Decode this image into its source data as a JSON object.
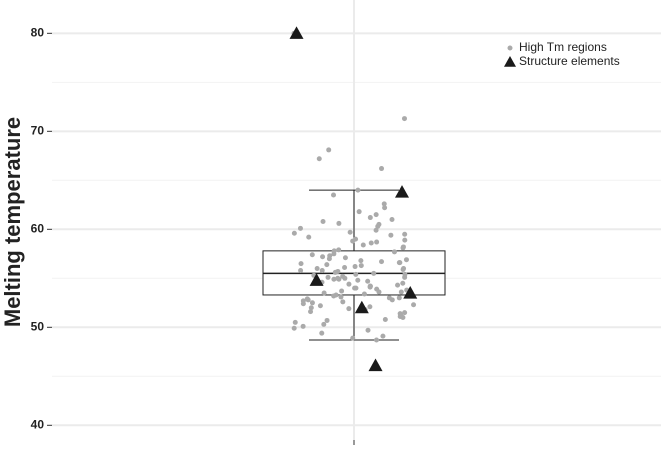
{
  "chart_data": {
    "type": "box",
    "y_label": "Melting temperature",
    "ylim": [
      38.5,
      83.4
    ],
    "yticks": [
      40,
      50,
      60,
      70,
      80
    ],
    "grid": true,
    "legend": "top-right",
    "box": {
      "whisker_low": 48.7,
      "q1": 53.3,
      "median": 55.5,
      "q3": 57.8,
      "whisker_high": 64.0
    },
    "series": [
      {
        "name": "High Tm regions",
        "color": "#aaaaaa",
        "marker": "circle",
        "values": [
          80.0,
          71.3,
          68.1,
          67.2,
          66.2,
          64.0,
          63.5,
          62.6,
          62.2,
          61.8,
          61.5,
          61.2,
          61.0,
          60.8,
          60.6,
          60.5,
          60.3,
          60.1,
          59.9,
          59.7,
          59.5,
          59.4,
          59.2,
          59.0,
          58.9,
          58.7,
          58.6,
          58.4,
          58.2,
          58.1,
          57.9,
          57.8,
          57.7,
          57.5,
          57.4,
          57.3,
          57.1,
          57.0,
          56.9,
          56.8,
          56.7,
          56.6,
          56.5,
          56.4,
          56.3,
          56.2,
          56.1,
          56.0,
          55.9,
          55.8,
          55.7,
          55.6,
          55.5,
          55.4,
          55.4,
          55.3,
          55.2,
          55.1,
          55.0,
          55.0,
          54.9,
          54.8,
          54.7,
          54.6,
          54.5,
          54.4,
          54.3,
          54.2,
          54.1,
          54.0,
          54.0,
          53.9,
          53.8,
          53.7,
          53.6,
          53.5,
          53.4,
          53.3,
          53.2,
          53.1,
          53.0,
          53.0,
          52.9,
          52.8,
          52.7,
          52.6,
          52.5,
          52.4,
          52.3,
          52.2,
          52.1,
          52.0,
          51.9,
          51.8,
          51.6,
          51.5,
          51.4,
          51.2,
          51.1,
          51.0,
          50.8,
          50.7,
          50.5,
          50.3,
          50.1,
          49.9,
          49.7,
          49.4,
          49.1,
          48.9,
          48.7,
          57.2,
          56.6,
          55.8,
          54.9,
          53.6,
          52.8,
          58.8,
          59.6,
          56.0,
          54.2,
          55.1
        ]
      },
      {
        "name": "Structure elements",
        "color": "#1a1a1a",
        "marker": "triangle",
        "values": [
          80.0,
          63.8,
          54.8,
          53.5,
          52.0,
          46.1
        ]
      }
    ]
  }
}
